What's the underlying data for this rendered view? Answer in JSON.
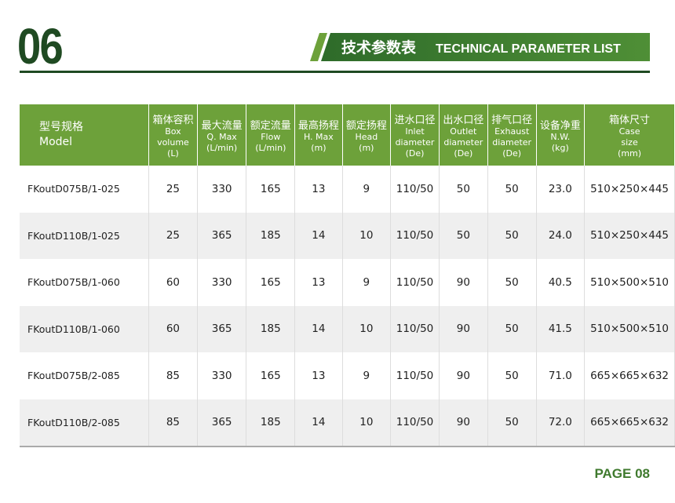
{
  "header": {
    "section_number": "06",
    "title_cn": "技术参数表",
    "title_en": "TECHNICAL PARAMETER LIST"
  },
  "table": {
    "columns": [
      {
        "cn": "型号规格",
        "en": [
          "Model"
        ]
      },
      {
        "cn": "箱体容积",
        "en": [
          "Box",
          "volume",
          "(L)"
        ]
      },
      {
        "cn": "最大流量",
        "en": [
          "Q. Max",
          "(L/min)"
        ]
      },
      {
        "cn": "额定流量",
        "en": [
          "Flow",
          "(L/min)"
        ]
      },
      {
        "cn": "最高扬程",
        "en": [
          "H. Max",
          "(m)"
        ]
      },
      {
        "cn": "额定扬程",
        "en": [
          "Head",
          "(m)"
        ]
      },
      {
        "cn": "进水口径",
        "en": [
          "Inlet",
          "diameter",
          "(De)"
        ]
      },
      {
        "cn": "出水口径",
        "en": [
          "Outlet",
          "diameter",
          "(De)"
        ]
      },
      {
        "cn": "排气口径",
        "en": [
          "Exhaust",
          "diameter",
          "(De)"
        ]
      },
      {
        "cn": "设备净重",
        "en": [
          "N.W.",
          "(kg)"
        ]
      },
      {
        "cn": "箱体尺寸",
        "en": [
          "Case",
          "size",
          "(mm)"
        ]
      }
    ],
    "rows": [
      [
        "FKoutD075B/1-025",
        "25",
        "330",
        "165",
        "13",
        "9",
        "110/50",
        "50",
        "50",
        "23.0",
        "510×250×445"
      ],
      [
        "FKoutD110B/1-025",
        "25",
        "365",
        "185",
        "14",
        "10",
        "110/50",
        "50",
        "50",
        "24.0",
        "510×250×445"
      ],
      [
        "FKoutD075B/1-060",
        "60",
        "330",
        "165",
        "13",
        "9",
        "110/50",
        "90",
        "50",
        "40.5",
        "510×500×510"
      ],
      [
        "FKoutD110B/1-060",
        "60",
        "365",
        "185",
        "14",
        "10",
        "110/50",
        "90",
        "50",
        "41.5",
        "510×500×510"
      ],
      [
        "FKoutD075B/2-085",
        "85",
        "330",
        "165",
        "13",
        "9",
        "110/50",
        "90",
        "50",
        "71.0",
        "665×665×632"
      ],
      [
        "FKoutD110B/2-085",
        "85",
        "365",
        "185",
        "14",
        "10",
        "110/50",
        "90",
        "50",
        "72.0",
        "665×665×632"
      ]
    ]
  },
  "footer": {
    "page": "PAGE 08"
  }
}
